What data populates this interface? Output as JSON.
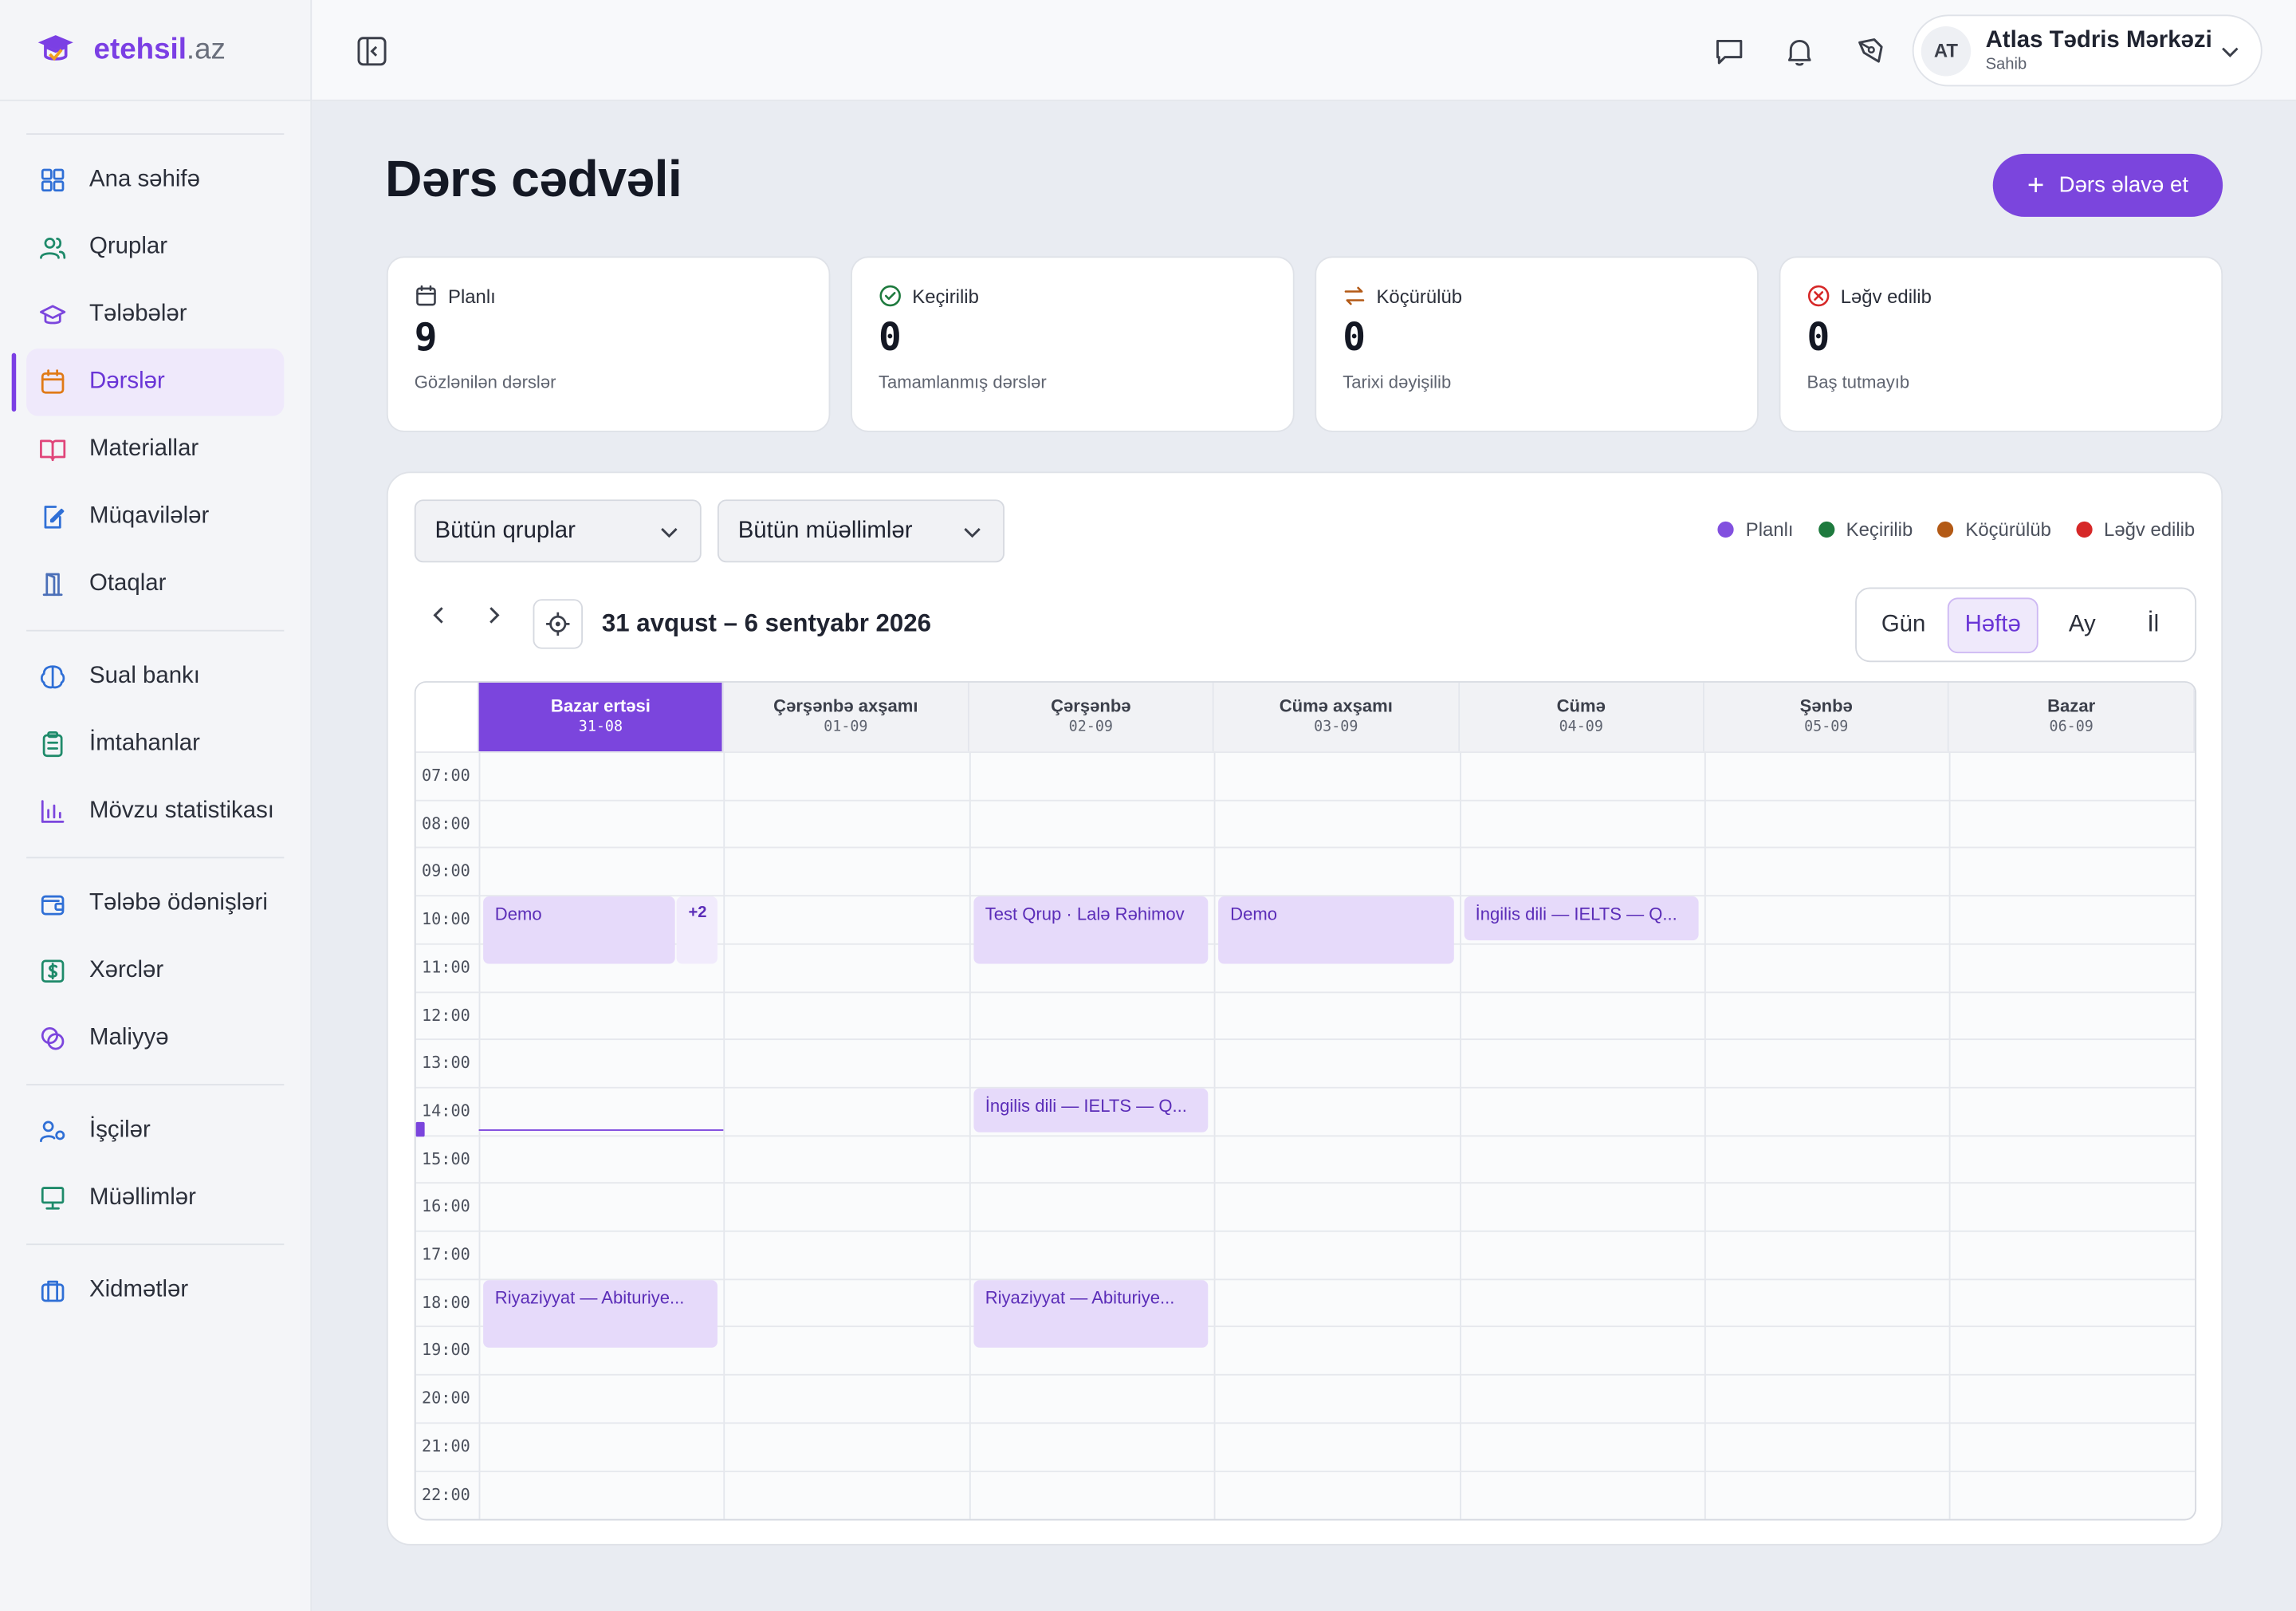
{
  "brand": {
    "name": "etehsil",
    "tld": ".az"
  },
  "sidebar": {
    "groups": [
      [
        {
          "label": "Ana səhifə",
          "icon": "dashboard-icon"
        },
        {
          "label": "Qruplar",
          "icon": "users-icon"
        },
        {
          "label": "Tələbələr",
          "icon": "graduation-cap-icon"
        },
        {
          "label": "Dərslər",
          "icon": "calendar-icon",
          "active": true
        },
        {
          "label": "Materiallar",
          "icon": "book-open-icon"
        },
        {
          "label": "Müqavilələr",
          "icon": "document-edit-icon"
        },
        {
          "label": "Otaqlar",
          "icon": "door-icon"
        }
      ],
      [
        {
          "label": "Sual bankı",
          "icon": "brain-icon"
        },
        {
          "label": "İmtahanlar",
          "icon": "clipboard-list-icon"
        },
        {
          "label": "Mövzu statistikası",
          "icon": "bar-chart-icon"
        }
      ],
      [
        {
          "label": "Tələbə ödənişləri",
          "icon": "wallet-icon"
        },
        {
          "label": "Xərclər",
          "icon": "dollar-icon"
        },
        {
          "label": "Maliyyə",
          "icon": "coins-icon"
        }
      ],
      [
        {
          "label": "İşçilər",
          "icon": "user-cog-icon"
        },
        {
          "label": "Müəllimlər",
          "icon": "presentation-icon"
        }
      ],
      [
        {
          "label": "Xidmətlər",
          "icon": "briefcase-icon"
        }
      ]
    ]
  },
  "user": {
    "initials": "AT",
    "name": "Atlas Tədris Mərkəzi",
    "role": "Sahib"
  },
  "page": {
    "title": "Dərs cədvəli",
    "add_label": "Dərs əlavə et"
  },
  "stats": [
    {
      "label": "Planlı",
      "value": "9",
      "sub": "Gözlənilən dərslər",
      "icon": "calendar-icon",
      "color": "#3b3f4a"
    },
    {
      "label": "Keçirilib",
      "value": "0",
      "sub": "Tamamlanmış dərslər",
      "icon": "check-circle-icon",
      "color": "#1e7a3e"
    },
    {
      "label": "Köçürülüb",
      "value": "0",
      "sub": "Tarixi dəyişilib",
      "icon": "swap-icon",
      "color": "#b35a16"
    },
    {
      "label": "Ləğv edilib",
      "value": "0",
      "sub": "Baş tutmayıb",
      "icon": "x-circle-icon",
      "color": "#d62828"
    }
  ],
  "filters": {
    "group": "Bütün qruplar",
    "teacher": "Bütün müəllimlər"
  },
  "legend": [
    {
      "label": "Planlı",
      "color": "#8250df"
    },
    {
      "label": "Keçirilib",
      "color": "#1e7a3e"
    },
    {
      "label": "Köçürülüb",
      "color": "#b35a16"
    },
    {
      "label": "Ləğv edilib",
      "color": "#d62828"
    }
  ],
  "calendar": {
    "range": "31 avqust – 6 sentyabr 2026",
    "views": [
      "Gün",
      "Həftə",
      "Ay",
      "İl"
    ],
    "active_view": "Həftə",
    "days": [
      {
        "name": "Bazar ertəsi",
        "date": "31-08",
        "active": true
      },
      {
        "name": "Çərşənbə axşamı",
        "date": "01-09"
      },
      {
        "name": "Çərşənbə",
        "date": "02-09"
      },
      {
        "name": "Cümə axşamı",
        "date": "03-09"
      },
      {
        "name": "Cümə",
        "date": "04-09"
      },
      {
        "name": "Şənbə",
        "date": "05-09"
      },
      {
        "name": "Bazar",
        "date": "06-09"
      }
    ],
    "hours": [
      "07:00",
      "08:00",
      "09:00",
      "10:00",
      "11:00",
      "12:00",
      "13:00",
      "14:00",
      "15:00",
      "16:00",
      "17:00",
      "18:00",
      "19:00",
      "20:00",
      "21:00",
      "22:00"
    ],
    "events": [
      {
        "day": 0,
        "start": 10.0,
        "end": 11.5,
        "title": "Demo",
        "more": "+2"
      },
      {
        "day": 2,
        "start": 10.0,
        "end": 11.5,
        "title": "Test Qrup · Lalə Rəhimov"
      },
      {
        "day": 3,
        "start": 10.0,
        "end": 11.5,
        "title": "Demo"
      },
      {
        "day": 4,
        "start": 10.0,
        "end": 11.0,
        "title": "İngilis dili — IELTS — Q..."
      },
      {
        "day": 2,
        "start": 14.0,
        "end": 15.0,
        "title": "İngilis dili — IELTS — Q..."
      },
      {
        "day": 0,
        "start": 18.0,
        "end": 19.5,
        "title": "Riyaziyyat — Abituriye..."
      },
      {
        "day": 2,
        "start": 18.0,
        "end": 19.5,
        "title": "Riyaziyyat — Abituriye..."
      }
    ],
    "now": 14.9
  }
}
